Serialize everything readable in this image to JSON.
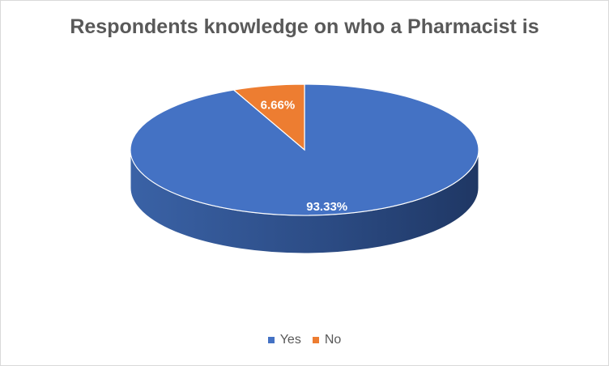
{
  "chart_data": {
    "type": "pie",
    "title": "Respondents knowledge on who a Pharmacist is",
    "three_d": true,
    "legend_position": "bottom",
    "slices": [
      {
        "label": "Yes",
        "value": 93.33,
        "data_label": "93.33%",
        "color": "#4472c4"
      },
      {
        "label": "No",
        "value": 6.66,
        "data_label": "6.66%",
        "color": "#ed7d31"
      }
    ]
  }
}
